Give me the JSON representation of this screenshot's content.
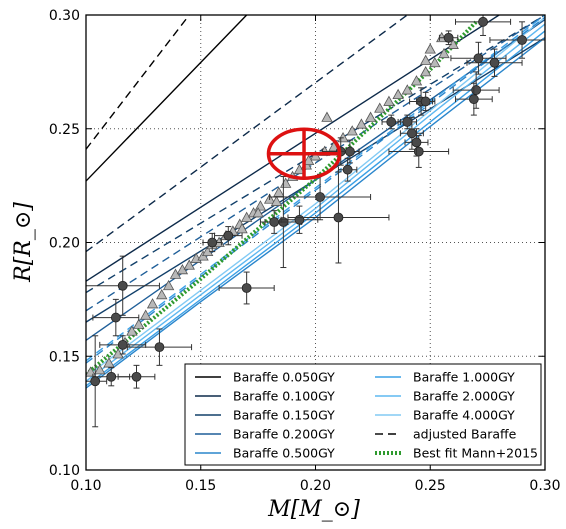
{
  "chart_data": {
    "type": "scatter",
    "xlabel": "M[M_⊙]",
    "ylabel": "R[R_⊙]",
    "xlim": [
      0.1,
      0.3
    ],
    "ylim": [
      0.1,
      0.3
    ],
    "x_ticks": [
      "0.10",
      "0.15",
      "0.20",
      "0.25",
      "0.30"
    ],
    "y_ticks": [
      "0.10",
      "0.15",
      "0.20",
      "0.25",
      "0.30"
    ],
    "grid": true,
    "legend_position": "lower-right",
    "colors": {
      "black": "#000000",
      "navy": "#0d2a4a",
      "dark_blue": "#12406a",
      "mid_blue": "#1f5f99",
      "blue": "#2a86cc",
      "light_blue": "#3aa0e6",
      "pale_blue": "#5fb8f0",
      "lightest_blue": "#82caf4",
      "green": "#2e9a2e",
      "red": "#dd1111",
      "triangle_fill": "#b8b8b8",
      "circle_fill": "#4a4a4a"
    },
    "legend": [
      {
        "label": "Baraffe 0.050GY",
        "color": "#000000",
        "dash": "solid"
      },
      {
        "label": "Baraffe 0.100GY",
        "color": "#0d2a4a",
        "dash": "solid"
      },
      {
        "label": "Baraffe 0.150GY",
        "color": "#12406a",
        "dash": "solid"
      },
      {
        "label": "Baraffe 0.200GY",
        "color": "#1f5f99",
        "dash": "solid"
      },
      {
        "label": "Baraffe 0.500GY",
        "color": "#2a86cc",
        "dash": "solid"
      },
      {
        "label": "Baraffe 1.000GY",
        "color": "#3aa0e6",
        "dash": "solid"
      },
      {
        "label": "Baraffe 2.000GY",
        "color": "#5fb8f0",
        "dash": "solid"
      },
      {
        "label": "Baraffe 4.000GY",
        "color": "#82caf4",
        "dash": "solid"
      },
      {
        "label": "adjusted Baraffe",
        "color": "#000000",
        "dash": "dashed"
      },
      {
        "label": "Best fit Mann+2015",
        "color": "#2e9a2e",
        "dash": "dotted"
      }
    ],
    "series_lines": [
      {
        "color": "#000000",
        "dash": "solid",
        "x": [
          0.1,
          0.17
        ],
        "y": [
          0.227,
          0.3
        ]
      },
      {
        "color": "#0d2a4a",
        "dash": "solid",
        "x": [
          0.1,
          0.28
        ],
        "y": [
          0.183,
          0.3
        ]
      },
      {
        "color": "#12406a",
        "dash": "solid",
        "x": [
          0.1,
          0.3
        ],
        "y": [
          0.165,
          0.29
        ]
      },
      {
        "color": "#1f5f99",
        "dash": "solid",
        "x": [
          0.1,
          0.3
        ],
        "y": [
          0.157,
          0.298
        ]
      },
      {
        "color": "#2a86cc",
        "dash": "solid",
        "x": [
          0.1,
          0.15,
          0.2,
          0.25,
          0.3
        ],
        "y": [
          0.136,
          0.174,
          0.211,
          0.251,
          0.29
        ]
      },
      {
        "color": "#3aa0e6",
        "dash": "solid",
        "x": [
          0.1,
          0.15,
          0.2,
          0.25,
          0.3
        ],
        "y": [
          0.137,
          0.175,
          0.213,
          0.253,
          0.293
        ]
      },
      {
        "color": "#5fb8f0",
        "dash": "solid",
        "x": [
          0.1,
          0.15,
          0.2,
          0.25,
          0.3
        ],
        "y": [
          0.139,
          0.177,
          0.215,
          0.256,
          0.296
        ]
      },
      {
        "color": "#82caf4",
        "dash": "solid",
        "x": [
          0.1,
          0.15,
          0.2,
          0.25,
          0.3
        ],
        "y": [
          0.141,
          0.179,
          0.217,
          0.258,
          0.299
        ]
      },
      {
        "color": "#000000",
        "dash": "dashed",
        "x": [
          0.1,
          0.145
        ],
        "y": [
          0.241,
          0.3
        ]
      },
      {
        "color": "#0d2a4a",
        "dash": "dashed",
        "x": [
          0.1,
          0.24
        ],
        "y": [
          0.196,
          0.3
        ]
      },
      {
        "color": "#12406a",
        "dash": "dashed",
        "x": [
          0.1,
          0.3
        ],
        "y": [
          0.178,
          0.3
        ]
      },
      {
        "color": "#1f5f99",
        "dash": "dashed",
        "x": [
          0.1,
          0.3
        ],
        "y": [
          0.17,
          0.3
        ]
      },
      {
        "color": "#2a86cc",
        "dash": "dashed",
        "x": [
          0.1,
          0.3
        ],
        "y": [
          0.147,
          0.299
        ]
      },
      {
        "color": "#3aa0e6",
        "dash": "dashed",
        "x": [
          0.1,
          0.3
        ],
        "y": [
          0.148,
          0.3
        ]
      },
      {
        "color": "#2e9a2e",
        "dash": "dotted",
        "x": [
          0.1,
          0.15,
          0.2,
          0.25,
          0.27
        ],
        "y": [
          0.142,
          0.184,
          0.228,
          0.276,
          0.297
        ]
      }
    ],
    "triangles": [
      [
        0.102,
        0.143
      ],
      [
        0.106,
        0.144
      ],
      [
        0.11,
        0.147
      ],
      [
        0.114,
        0.151
      ],
      [
        0.117,
        0.156
      ],
      [
        0.12,
        0.161
      ],
      [
        0.123,
        0.164
      ],
      [
        0.126,
        0.168
      ],
      [
        0.129,
        0.173
      ],
      [
        0.133,
        0.177
      ],
      [
        0.136,
        0.181
      ],
      [
        0.139,
        0.186
      ],
      [
        0.142,
        0.188
      ],
      [
        0.145,
        0.19
      ],
      [
        0.148,
        0.193
      ],
      [
        0.151,
        0.194
      ],
      [
        0.153,
        0.196
      ],
      [
        0.155,
        0.199
      ],
      [
        0.158,
        0.2
      ],
      [
        0.161,
        0.203
      ],
      [
        0.164,
        0.205
      ],
      [
        0.167,
        0.208
      ],
      [
        0.17,
        0.211
      ],
      [
        0.173,
        0.213
      ],
      [
        0.176,
        0.216
      ],
      [
        0.18,
        0.219
      ],
      [
        0.184,
        0.222
      ],
      [
        0.187,
        0.226
      ],
      [
        0.19,
        0.229
      ],
      [
        0.193,
        0.232
      ],
      [
        0.196,
        0.234
      ],
      [
        0.2,
        0.238
      ],
      [
        0.204,
        0.24
      ],
      [
        0.208,
        0.242
      ],
      [
        0.212,
        0.246
      ],
      [
        0.216,
        0.249
      ],
      [
        0.22,
        0.252
      ],
      [
        0.224,
        0.255
      ],
      [
        0.228,
        0.259
      ],
      [
        0.232,
        0.262
      ],
      [
        0.236,
        0.265
      ],
      [
        0.24,
        0.267
      ],
      [
        0.244,
        0.271
      ],
      [
        0.248,
        0.275
      ],
      [
        0.252,
        0.279
      ],
      [
        0.256,
        0.283
      ],
      [
        0.26,
        0.287
      ],
      [
        0.25,
        0.285
      ],
      [
        0.255,
        0.29
      ],
      [
        0.248,
        0.28
      ],
      [
        0.205,
        0.255
      ],
      [
        0.197,
        0.236
      ],
      [
        0.183,
        0.218
      ],
      [
        0.175,
        0.213
      ],
      [
        0.168,
        0.206
      ]
    ],
    "points": [
      {
        "x": 0.116,
        "y": 0.181,
        "xerr": 0.016,
        "yerr": 0.013
      },
      {
        "x": 0.113,
        "y": 0.167,
        "xerr": 0.01,
        "yerr": 0.008
      },
      {
        "x": 0.116,
        "y": 0.155,
        "xerr": 0.01,
        "yerr": 0.004
      },
      {
        "x": 0.111,
        "y": 0.141,
        "xerr": 0.008,
        "yerr": 0.004
      },
      {
        "x": 0.122,
        "y": 0.141,
        "xerr": 0.008,
        "yerr": 0.005
      },
      {
        "x": 0.132,
        "y": 0.154,
        "xerr": 0.014,
        "yerr": 0.008
      },
      {
        "x": 0.104,
        "y": 0.139,
        "xerr": 0.005,
        "yerr": 0.02
      },
      {
        "x": 0.17,
        "y": 0.18,
        "xerr": 0.012,
        "yerr": 0.007
      },
      {
        "x": 0.155,
        "y": 0.2,
        "xerr": 0.004,
        "yerr": 0.004
      },
      {
        "x": 0.162,
        "y": 0.203,
        "xerr": 0.006,
        "yerr": 0.004
      },
      {
        "x": 0.186,
        "y": 0.209,
        "xerr": 0.008,
        "yerr": 0.02
      },
      {
        "x": 0.193,
        "y": 0.21,
        "xerr": 0.008,
        "yerr": 0.006
      },
      {
        "x": 0.182,
        "y": 0.209,
        "xerr": 0.006,
        "yerr": 0.005
      },
      {
        "x": 0.202,
        "y": 0.22,
        "xerr": 0.022,
        "yerr": 0.01
      },
      {
        "x": 0.21,
        "y": 0.211,
        "xerr": 0.022,
        "yerr": 0.02
      },
      {
        "x": 0.211,
        "y": 0.24,
        "xerr": 0.008,
        "yerr": 0.006
      },
      {
        "x": 0.214,
        "y": 0.232,
        "xerr": 0.004,
        "yerr": 0.005
      },
      {
        "x": 0.215,
        "y": 0.24,
        "xerr": 0.004,
        "yerr": 0.005
      },
      {
        "x": 0.233,
        "y": 0.253,
        "xerr": 0.004,
        "yerr": 0.003
      },
      {
        "x": 0.24,
        "y": 0.253,
        "xerr": 0.004,
        "yerr": 0.003
      },
      {
        "x": 0.242,
        "y": 0.248,
        "xerr": 0.005,
        "yerr": 0.007
      },
      {
        "x": 0.245,
        "y": 0.24,
        "xerr": 0.013,
        "yerr": 0.007
      },
      {
        "x": 0.244,
        "y": 0.244,
        "xerr": 0.005,
        "yerr": 0.006
      },
      {
        "x": 0.246,
        "y": 0.262,
        "xerr": 0.005,
        "yerr": 0.006
      },
      {
        "x": 0.27,
        "y": 0.267,
        "xerr": 0.01,
        "yerr": 0.008
      },
      {
        "x": 0.269,
        "y": 0.263,
        "xerr": 0.008,
        "yerr": 0.007
      },
      {
        "x": 0.271,
        "y": 0.281,
        "xerr": 0.012,
        "yerr": 0.007
      },
      {
        "x": 0.273,
        "y": 0.297,
        "xerr": 0.012,
        "yerr": 0.006
      },
      {
        "x": 0.278,
        "y": 0.279,
        "xerr": 0.012,
        "yerr": 0.006
      },
      {
        "x": 0.29,
        "y": 0.289,
        "xerr": 0.014,
        "yerr": 0.008
      },
      {
        "x": 0.258,
        "y": 0.29,
        "xerr": 0.004,
        "yerr": 0.003
      },
      {
        "x": 0.248,
        "y": 0.262,
        "xerr": 0.004,
        "yerr": 0.004
      }
    ],
    "highlight": {
      "x": 0.195,
      "y": 0.239,
      "xerr": 0.012,
      "yerr": 0.009
    }
  }
}
